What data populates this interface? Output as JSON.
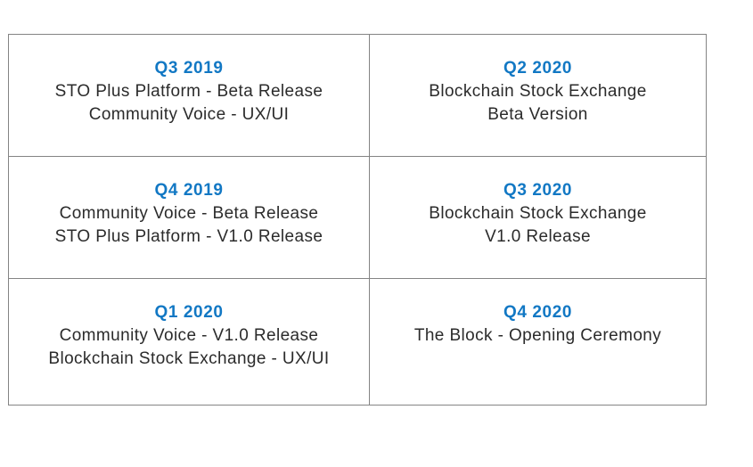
{
  "colors": {
    "accent_blue": "#1278c4",
    "body_text": "#2b2b2b",
    "table_border": "#848484",
    "background": "#ffffff"
  },
  "roadmap": {
    "cells": [
      {
        "quarter": "Q3 2019",
        "lines": [
          "STO Plus Platform - Beta Release",
          "Community Voice - UX/UI"
        ]
      },
      {
        "quarter": "Q2 2020",
        "lines": [
          "Blockchain Stock Exchange",
          "Beta Version"
        ]
      },
      {
        "quarter": "Q4 2019",
        "lines": [
          "Community Voice - Beta Release",
          "STO Plus Platform - V1.0 Release"
        ]
      },
      {
        "quarter": "Q3 2020",
        "lines": [
          "Blockchain Stock Exchange",
          "V1.0 Release"
        ]
      },
      {
        "quarter": "Q1 2020",
        "lines": [
          "Community Voice - V1.0 Release",
          "Blockchain Stock Exchange - UX/UI"
        ]
      },
      {
        "quarter": "Q4 2020",
        "lines": [
          "The Block - Opening Ceremony"
        ]
      }
    ]
  }
}
